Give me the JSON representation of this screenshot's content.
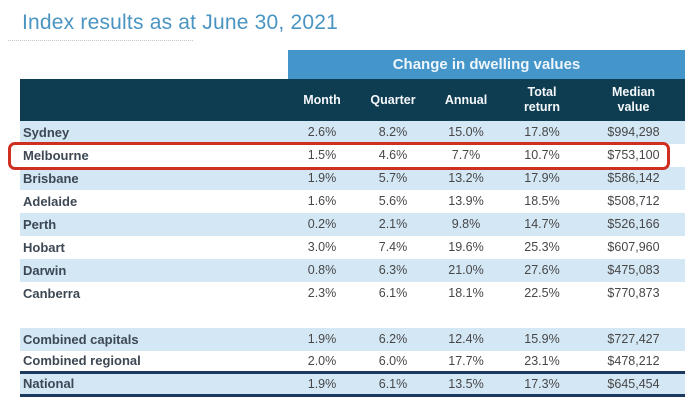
{
  "chart_data": {
    "type": "table",
    "title": "Index results as at June 30, 2021",
    "group_header": "Change in dwelling values",
    "columns": [
      {
        "key": "region",
        "label": ""
      },
      {
        "key": "month",
        "label": "Month"
      },
      {
        "key": "quarter",
        "label": "Quarter"
      },
      {
        "key": "annual",
        "label": "Annual"
      },
      {
        "key": "total_return",
        "label": "Total\nreturn"
      },
      {
        "key": "median_value",
        "label": "Median\nvalue"
      }
    ],
    "rows": [
      {
        "cells": [
          "Sydney",
          "2.6%",
          "8.2%",
          "15.0%",
          "17.8%",
          "$994,298"
        ]
      },
      {
        "cells": [
          "Melbourne",
          "1.5%",
          "4.6%",
          "7.7%",
          "10.7%",
          "$753,100"
        ],
        "highlighted": true
      },
      {
        "cells": [
          "Brisbane",
          "1.9%",
          "5.7%",
          "13.2%",
          "17.9%",
          "$586,142"
        ]
      },
      {
        "cells": [
          "Adelaide",
          "1.6%",
          "5.6%",
          "13.9%",
          "18.5%",
          "$508,712"
        ]
      },
      {
        "cells": [
          "Perth",
          "0.2%",
          "2.1%",
          "9.8%",
          "14.7%",
          "$526,166"
        ]
      },
      {
        "cells": [
          "Hobart",
          "3.0%",
          "7.4%",
          "19.6%",
          "25.3%",
          "$607,960"
        ]
      },
      {
        "cells": [
          "Darwin",
          "0.8%",
          "6.3%",
          "21.0%",
          "27.6%",
          "$475,083"
        ]
      },
      {
        "cells": [
          "Canberra",
          "2.3%",
          "6.1%",
          "18.1%",
          "22.5%",
          "$770,873"
        ]
      },
      {
        "type": "spacer"
      },
      {
        "cells": [
          "Combined capitals",
          "1.9%",
          "6.2%",
          "12.4%",
          "15.9%",
          "$727,427"
        ]
      },
      {
        "cells": [
          "Combined regional",
          "2.0%",
          "6.0%",
          "17.7%",
          "23.1%",
          "$478,212"
        ],
        "rule_below": true
      },
      {
        "cells": [
          "National",
          "1.9%",
          "6.1%",
          "13.5%",
          "17.3%",
          "$645,454"
        ],
        "rule_below": true
      }
    ],
    "highlighted_row": "Melbourne",
    "layout_hints": {
      "shading": "alternating rows, first data row shaded",
      "group_header_spans": [
        "Month",
        "Quarter",
        "Annual",
        "Total return",
        "Median value"
      ]
    }
  },
  "colors": {
    "title_blue": "#4a94c2",
    "banner_blue": "#4496ca",
    "header_bg": "#0e3c50",
    "row_shade_blue": "#d4e7f5",
    "highlight_red": "#ce2f21",
    "rule_navy": "#1c3a5e"
  }
}
